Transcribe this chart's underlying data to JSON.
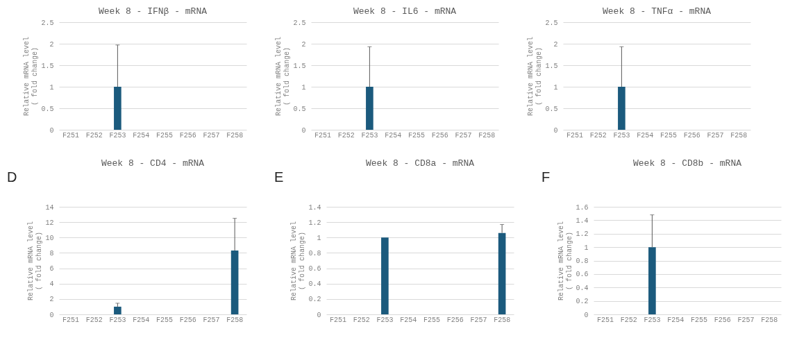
{
  "chart_data": [
    {
      "type": "bar",
      "title": "Week 8 - IFNβ - mRNA",
      "ylabel": "Relative mRNA level\n( fold change)",
      "categories": [
        "F251",
        "F252",
        "F253",
        "F254",
        "F255",
        "F256",
        "F257",
        "F258"
      ],
      "values": [
        null,
        null,
        1,
        null,
        null,
        null,
        null,
        null
      ],
      "errors": [
        null,
        null,
        [
          1,
          1.97
        ],
        null,
        null,
        null,
        null,
        null
      ],
      "color": "#1b5a7d",
      "ylim": [
        0,
        2.5
      ],
      "yticks": [
        0,
        0.5,
        1,
        1.5,
        2,
        2.5
      ],
      "grid": "y"
    },
    {
      "type": "bar",
      "title": "Week 8 - IL6 - mRNA",
      "ylabel": "Relative mRNA level\n( fold change)",
      "categories": [
        "F251",
        "F252",
        "F253",
        "F254",
        "F255",
        "F256",
        "F257",
        "F258"
      ],
      "values": [
        null,
        null,
        1,
        null,
        null,
        null,
        null,
        null
      ],
      "errors": [
        null,
        null,
        [
          1,
          1.93
        ],
        null,
        null,
        null,
        null,
        null
      ],
      "color": "#1b5a7d",
      "ylim": [
        0,
        2.5
      ],
      "yticks": [
        0,
        0.5,
        1,
        1.5,
        2,
        2.5
      ],
      "grid": "y"
    },
    {
      "type": "bar",
      "title": "Week 8 - TNFα - mRNA",
      "ylabel": "Relative mRNA level\n( fold change)",
      "categories": [
        "F251",
        "F252",
        "F253",
        "F254",
        "F255",
        "F256",
        "F257",
        "F258"
      ],
      "values": [
        null,
        null,
        1,
        null,
        null,
        null,
        null,
        null
      ],
      "errors": [
        null,
        null,
        [
          1,
          1.93
        ],
        null,
        null,
        null,
        null,
        null
      ],
      "color": "#1b5a7d",
      "ylim": [
        0,
        2.5
      ],
      "yticks": [
        0,
        0.5,
        1,
        1.5,
        2,
        2.5
      ],
      "grid": "y"
    },
    {
      "type": "bar",
      "title": "Week 8 - CD4 - mRNA",
      "ylabel": "Relative mRNA level\n( fold change)",
      "annotations": [
        "D"
      ],
      "categories": [
        "F251",
        "F252",
        "F253",
        "F254",
        "F255",
        "F256",
        "F257",
        "F258"
      ],
      "values": [
        null,
        null,
        1,
        null,
        null,
        null,
        null,
        8.3
      ],
      "errors": [
        null,
        null,
        [
          1,
          1.45
        ],
        null,
        null,
        null,
        null,
        [
          8.3,
          12.5
        ]
      ],
      "color": "#1b5a7d",
      "ylim": [
        0,
        14
      ],
      "yticks": [
        0,
        2,
        4,
        6,
        8,
        10,
        12,
        14
      ],
      "grid": "y"
    },
    {
      "type": "bar",
      "title": "Week 8 - CD8a - mRNA",
      "ylabel": "Relative mRNA level\n( fold change)",
      "annotations": [
        "E"
      ],
      "categories": [
        "F251",
        "F252",
        "F253",
        "F254",
        "F255",
        "F256",
        "F257",
        "F258"
      ],
      "values": [
        null,
        null,
        1,
        null,
        null,
        null,
        null,
        1.06
      ],
      "errors": [
        null,
        null,
        null,
        null,
        null,
        null,
        null,
        [
          1.06,
          1.17
        ]
      ],
      "color": "#1b5a7d",
      "ylim": [
        0,
        1.4
      ],
      "yticks": [
        0,
        0.2,
        0.4,
        0.6,
        0.8,
        1,
        1.2,
        1.4
      ],
      "grid": "y"
    },
    {
      "type": "bar",
      "title": "Week 8 - CD8b - mRNA",
      "ylabel": "Relative mRNA level\n( fold change)",
      "annotations": [
        "F"
      ],
      "categories": [
        "F251",
        "F252",
        "F253",
        "F254",
        "F255",
        "F256",
        "F257",
        "F258"
      ],
      "values": [
        null,
        null,
        1,
        null,
        null,
        null,
        null,
        null
      ],
      "errors": [
        null,
        null,
        [
          1,
          1.48
        ],
        null,
        null,
        null,
        null,
        null
      ],
      "color": "#1b5a7d",
      "ylim": [
        0,
        1.6
      ],
      "yticks": [
        0,
        0.2,
        0.4,
        0.6,
        0.8,
        1,
        1.2,
        1.4,
        1.6
      ],
      "grid": "y"
    }
  ]
}
